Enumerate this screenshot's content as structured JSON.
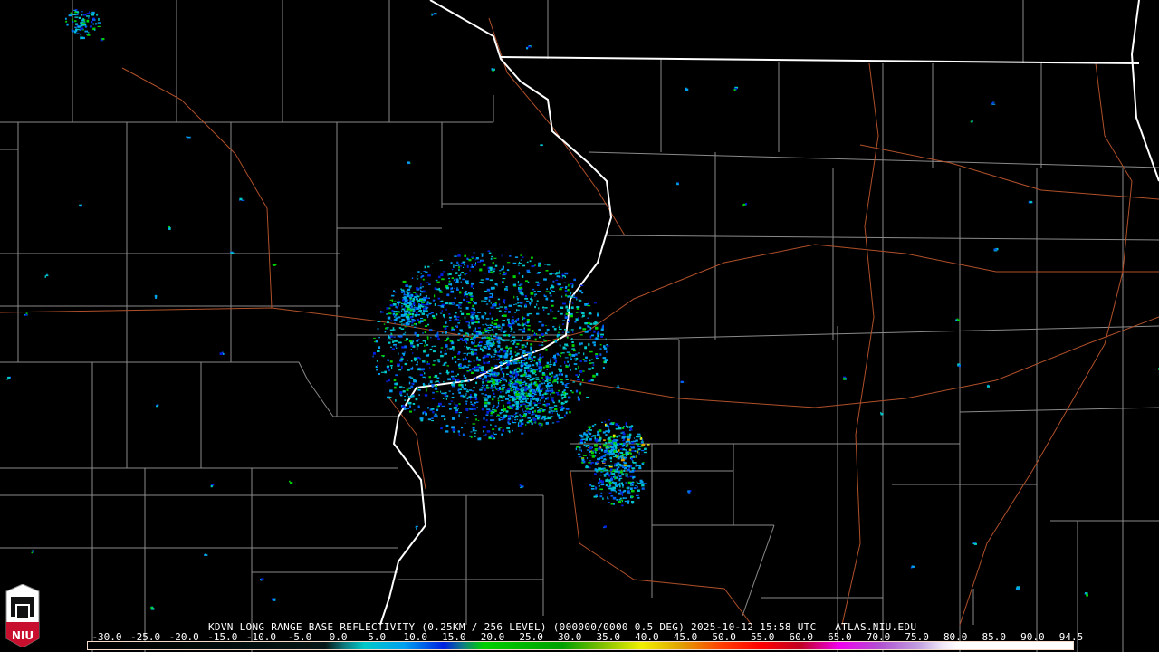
{
  "product": {
    "title": "KDVN LONG RANGE BASE REFLECTIVITY (0.25KM / 256 LEVEL) (000000/0000 0.5 DEG) 2025-10-12 15:58 UTC   ATLAS.NIU.EDU",
    "radar": "KDVN",
    "date": "2025-10-12",
    "time": "15:58 UTC",
    "elevation": "0.5 DEG",
    "source": "ATLAS.NIU.EDU"
  },
  "logo": {
    "text": "NIU"
  },
  "colorbar": {
    "min": -30.0,
    "max": 94.5,
    "tick_labels": [
      "-30.0",
      "-25.0",
      "-20.0",
      "-15.0",
      "-10.0",
      "-5.0",
      "0.0",
      "5.0",
      "10.0",
      "15.0",
      "20.0",
      "25.0",
      "30.0",
      "35.0",
      "40.0",
      "45.0",
      "50.0",
      "55.0",
      "60.0",
      "65.0",
      "70.0",
      "75.0",
      "80.0",
      "85.0",
      "90.0",
      "94.5"
    ],
    "stops": [
      {
        "v": -30,
        "c": "#000000"
      },
      {
        "v": 0,
        "c": "#061616"
      },
      {
        "v": 2.5,
        "c": "#0f7c80"
      },
      {
        "v": 5,
        "c": "#00c8c8"
      },
      {
        "v": 10,
        "c": "#00a0f0"
      },
      {
        "v": 15,
        "c": "#0020e0"
      },
      {
        "v": 17.5,
        "c": "#108080"
      },
      {
        "v": 20,
        "c": "#00d000"
      },
      {
        "v": 30,
        "c": "#00a000"
      },
      {
        "v": 35,
        "c": "#80c000"
      },
      {
        "v": 40,
        "c": "#f0f000"
      },
      {
        "v": 45,
        "c": "#e0a000"
      },
      {
        "v": 50,
        "c": "#ff4000"
      },
      {
        "v": 55,
        "c": "#ff0000"
      },
      {
        "v": 60,
        "c": "#c00020"
      },
      {
        "v": 65,
        "c": "#f000f0"
      },
      {
        "v": 70,
        "c": "#b050d0"
      },
      {
        "v": 75,
        "c": "#c0a0e0"
      },
      {
        "v": 78,
        "c": "#f0e8f8"
      },
      {
        "v": 80,
        "c": "#ffffff"
      },
      {
        "v": 94.5,
        "c": "#ffffff"
      }
    ]
  },
  "colors": {
    "county": "#8a8a8a",
    "state": "#ffffff",
    "road": "#b0502a",
    "river": "#ffffff"
  }
}
